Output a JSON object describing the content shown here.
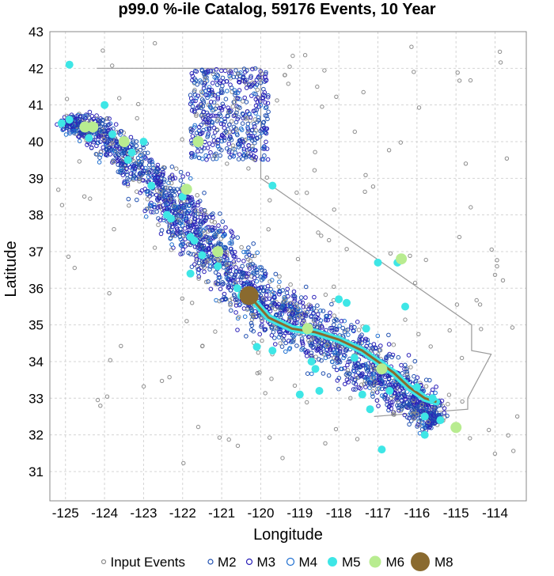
{
  "chart_data": {
    "type": "scatter",
    "title": "p99.0 %-ile Catalog, 59176 Events, 10 Year",
    "xlabel": "Longitude",
    "ylabel": "Latitude",
    "xlim": [
      -125.4,
      -113.2
    ],
    "ylim": [
      30.2,
      43.0
    ],
    "xticks": [
      -125,
      -124,
      -123,
      -122,
      -121,
      -120,
      -119,
      -118,
      -117,
      -116,
      -115,
      -114
    ],
    "yticks": [
      31,
      32,
      33,
      34,
      35,
      36,
      37,
      38,
      39,
      40,
      41,
      42,
      43
    ],
    "grid": true,
    "legend_position": "bottom",
    "colors": {
      "input": "#8c8c8c",
      "m2": "#1f4fb0",
      "m3": "#2a20b8",
      "m4": "#1e6fd0",
      "m5": "#3ee6e6",
      "m6": "#b8ec90",
      "m8": "#8a6a2f",
      "boundary": "#9a9a9a",
      "rupture": "#8a6a2f"
    },
    "series": [
      {
        "name": "Input Events",
        "marker": "hollow",
        "note_count_total": 59176
      },
      {
        "name": "M2",
        "marker": "hollow"
      },
      {
        "name": "M3",
        "marker": "hollow"
      },
      {
        "name": "M4",
        "marker": "hollow"
      },
      {
        "name": "M5",
        "marker": "filled"
      },
      {
        "name": "M6",
        "marker": "filled"
      },
      {
        "name": "M8",
        "marker": "filled"
      }
    ],
    "m5_events": [
      [
        -125.1,
        40.5
      ],
      [
        -124.9,
        40.6
      ],
      [
        -124.0,
        41.0
      ],
      [
        -124.9,
        42.1
      ],
      [
        -123.4,
        39.5
      ],
      [
        -123.3,
        39.7
      ],
      [
        -122.4,
        38.0
      ],
      [
        -122.3,
        37.9
      ],
      [
        -121.7,
        37.3
      ],
      [
        -121.1,
        36.6
      ],
      [
        -120.6,
        36.0
      ],
      [
        -120.3,
        35.9
      ],
      [
        -119.7,
        38.8
      ],
      [
        -120.1,
        34.4
      ],
      [
        -118.0,
        35.7
      ],
      [
        -117.3,
        34.9
      ],
      [
        -117.0,
        36.7
      ],
      [
        -116.5,
        36.7
      ],
      [
        -116.3,
        35.5
      ],
      [
        -116.0,
        33.3
      ],
      [
        -115.4,
        32.4
      ],
      [
        -115.8,
        32.0
      ],
      [
        -117.2,
        32.7
      ],
      [
        -118.7,
        34.0
      ],
      [
        -119.7,
        34.3
      ],
      [
        -118.5,
        33.2
      ],
      [
        -121.8,
        36.4
      ],
      [
        -121.8,
        37.4
      ],
      [
        -124.4,
        40.1
      ],
      [
        -123.8,
        40.2
      ],
      [
        -122.8,
        38.8
      ],
      [
        -117.6,
        34.1
      ],
      [
        -119.0,
        33.1
      ],
      [
        -117.4,
        33.1
      ],
      [
        -116.7,
        33.2
      ],
      [
        -122.0,
        38.5
      ],
      [
        -121.5,
        36.9
      ],
      [
        -120.5,
        35.8
      ],
      [
        -115.6,
        33.0
      ],
      [
        -115.8,
        32.5
      ],
      [
        -116.9,
        31.6
      ],
      [
        -123.0,
        40.0
      ],
      [
        -117.8,
        35.6
      ],
      [
        -118.6,
        33.8
      ]
    ],
    "m6_events": [
      [
        -124.5,
        40.4
      ],
      [
        -124.3,
        40.4
      ],
      [
        -121.1,
        37.0
      ],
      [
        -121.9,
        38.7
      ],
      [
        -123.5,
        40.0
      ],
      [
        -116.4,
        36.8
      ],
      [
        -115.0,
        32.2
      ],
      [
        -116.9,
        33.8
      ],
      [
        -118.8,
        34.9
      ],
      [
        -121.6,
        40.0
      ]
    ],
    "m8_events": [
      [
        -120.3,
        35.8
      ]
    ],
    "rupture_trace": [
      [
        -120.3,
        35.8
      ],
      [
        -119.8,
        35.2
      ],
      [
        -119.2,
        34.9
      ],
      [
        -118.6,
        34.8
      ],
      [
        -118.0,
        34.6
      ],
      [
        -117.4,
        34.3
      ],
      [
        -117.0,
        34.0
      ],
      [
        -116.6,
        33.7
      ],
      [
        -116.2,
        33.3
      ],
      [
        -115.8,
        33.0
      ],
      [
        -115.5,
        32.9
      ]
    ]
  },
  "legend": {
    "items": [
      {
        "label": "Input Events",
        "key": "input"
      },
      {
        "label": "M2",
        "key": "m2"
      },
      {
        "label": "M3",
        "key": "m3"
      },
      {
        "label": "M4",
        "key": "m4"
      },
      {
        "label": "M5",
        "key": "m5"
      },
      {
        "label": "M6",
        "key": "m6"
      },
      {
        "label": "M8",
        "key": "m8"
      }
    ]
  }
}
